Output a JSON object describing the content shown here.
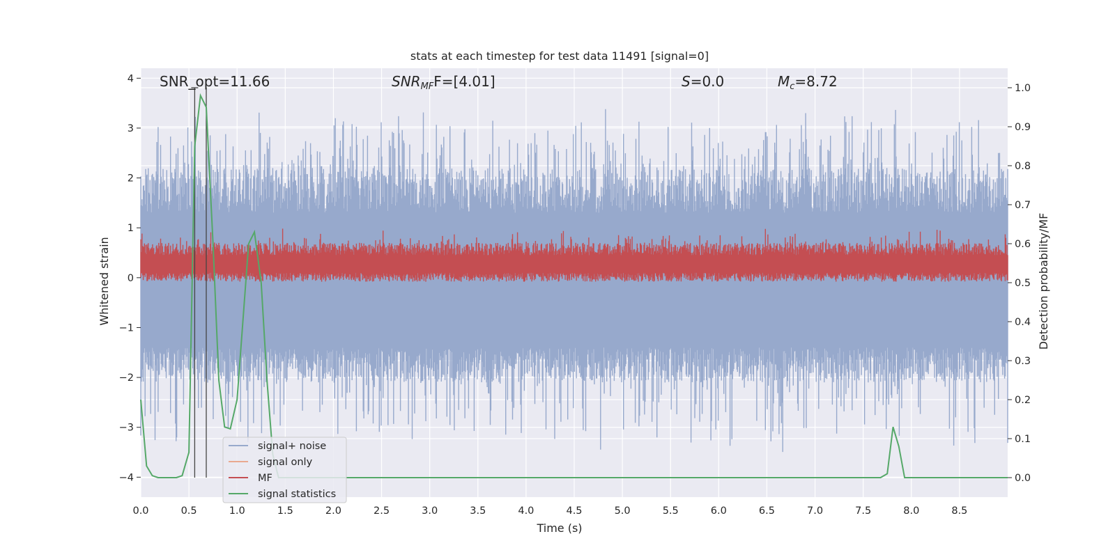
{
  "chart_data": {
    "type": "line",
    "title": "stats at each timestep for test data 11491 [signal=0]",
    "xlabel": "Time (s)",
    "ylabel_left": "Whitened strain",
    "ylabel_right": "Detection probability/MF",
    "xlim": [
      0.0,
      9.0
    ],
    "ylim_left": [
      -4.4,
      4.2
    ],
    "ylim_right": [
      -0.05,
      1.05
    ],
    "x_ticks": [
      "0.0",
      "0.5",
      "1.0",
      "1.5",
      "2.0",
      "2.5",
      "3.0",
      "3.5",
      "4.0",
      "4.5",
      "5.0",
      "5.5",
      "6.0",
      "6.5",
      "7.0",
      "7.5",
      "8.0",
      "8.5"
    ],
    "y_left_ticks": [
      "−4",
      "−3",
      "−2",
      "−1",
      "0",
      "1",
      "2",
      "3",
      "4"
    ],
    "y_right_ticks": [
      "0.0",
      "0.1",
      "0.2",
      "0.3",
      "0.4",
      "0.5",
      "0.6",
      "0.7",
      "0.8",
      "0.9",
      "1.0"
    ],
    "grid": true,
    "legend_position": "lower-left",
    "annotations": {
      "snr_opt": "SNR_opt=11.66",
      "snr_mf_base": "SNR",
      "snr_mf_sub": "MF",
      "snr_mf_value": "F=[4.01]",
      "s_label": "S",
      "s_value": "=0.0",
      "mc_base": "M",
      "mc_sub": "c",
      "mc_value": "=8.72"
    },
    "vertical_markers": [
      0.56,
      0.68
    ],
    "series": [
      {
        "name": "signal+ noise",
        "axis": "left",
        "color": "#97a9cc",
        "style": "noise band, approx range -4 to 3.8"
      },
      {
        "name": "signal only",
        "axis": "left",
        "color": "#e9a98f",
        "values": []
      },
      {
        "name": "MF",
        "axis": "left",
        "color": "#c44e52",
        "style": "noise band, approx range -0.1 to 1.0"
      },
      {
        "name": "signal statistics",
        "axis": "right",
        "color": "#55a868",
        "x": [
          0.0,
          0.06,
          0.12,
          0.18,
          0.25,
          0.31,
          0.37,
          0.43,
          0.5,
          0.56,
          0.62,
          0.68,
          0.75,
          0.81,
          0.87,
          0.93,
          1.0,
          1.06,
          1.12,
          1.18,
          1.25,
          1.31,
          1.37,
          1.43,
          1.5,
          2.0,
          3.0,
          4.0,
          5.0,
          6.0,
          7.0,
          7.5,
          7.62,
          7.68,
          7.75,
          7.81,
          7.87,
          7.93,
          8.0,
          8.5,
          9.0
        ],
        "values": [
          0.2,
          0.03,
          0.005,
          0.0,
          0.0,
          0.0,
          0.0,
          0.005,
          0.065,
          0.85,
          0.98,
          0.95,
          0.6,
          0.25,
          0.13,
          0.125,
          0.2,
          0.4,
          0.6,
          0.63,
          0.5,
          0.25,
          0.06,
          0.0,
          0.0,
          0.0,
          0.0,
          0.0,
          0.0,
          0.0,
          0.0,
          0.0,
          0.0,
          0.0,
          0.01,
          0.13,
          0.08,
          0.0,
          0.0,
          0.0,
          0.0
        ]
      }
    ]
  }
}
